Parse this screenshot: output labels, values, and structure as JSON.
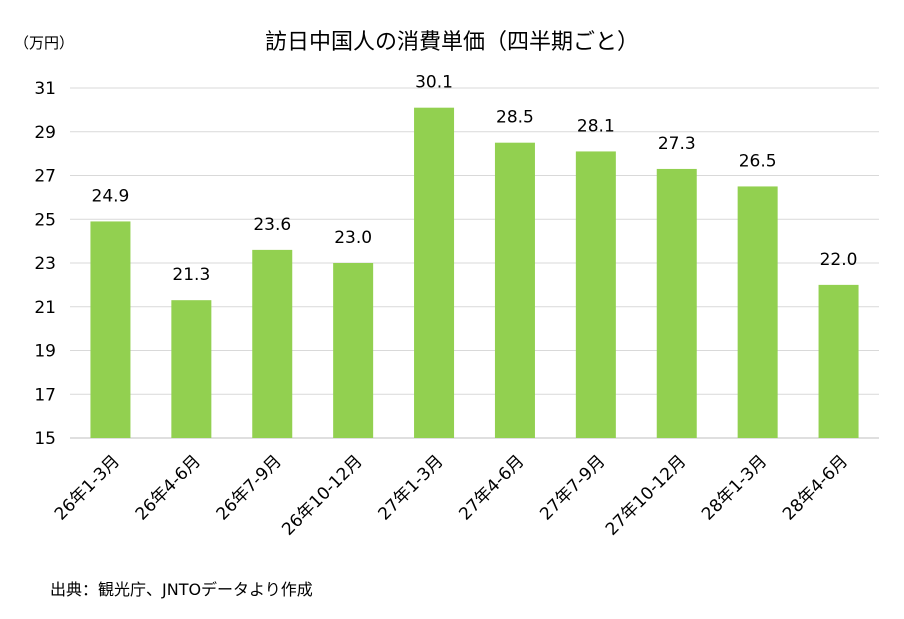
{
  "chart_data": {
    "type": "bar",
    "title": "訪日中国人の消費単価（四半期ごと）",
    "unit_label": "（万円）",
    "categories": [
      "26年1-3月",
      "26年4-6月",
      "26年7-9月",
      "26年10-12月",
      "27年1-3月",
      "27年4-6月",
      "27年7-9月",
      "27年10-12月",
      "28年1-3月",
      "28年4-6月"
    ],
    "values": [
      24.9,
      21.3,
      23.6,
      23.0,
      30.1,
      28.5,
      28.1,
      27.3,
      26.5,
      22.0
    ],
    "data_labels": [
      "24.9",
      "21.3",
      "23.6",
      "23.0",
      "30.1",
      "28.5",
      "28.1",
      "27.3",
      "26.5",
      "22.0"
    ],
    "ylim": [
      15,
      31
    ],
    "yticks": [
      15,
      17,
      19,
      21,
      23,
      25,
      27,
      29,
      31
    ],
    "grid": true,
    "colors": {
      "bar": "#92D050",
      "grid": "#D9D9D9",
      "axis": "#BFBFBF"
    }
  },
  "source": "出典：観光庁、JNTOデータより作成"
}
